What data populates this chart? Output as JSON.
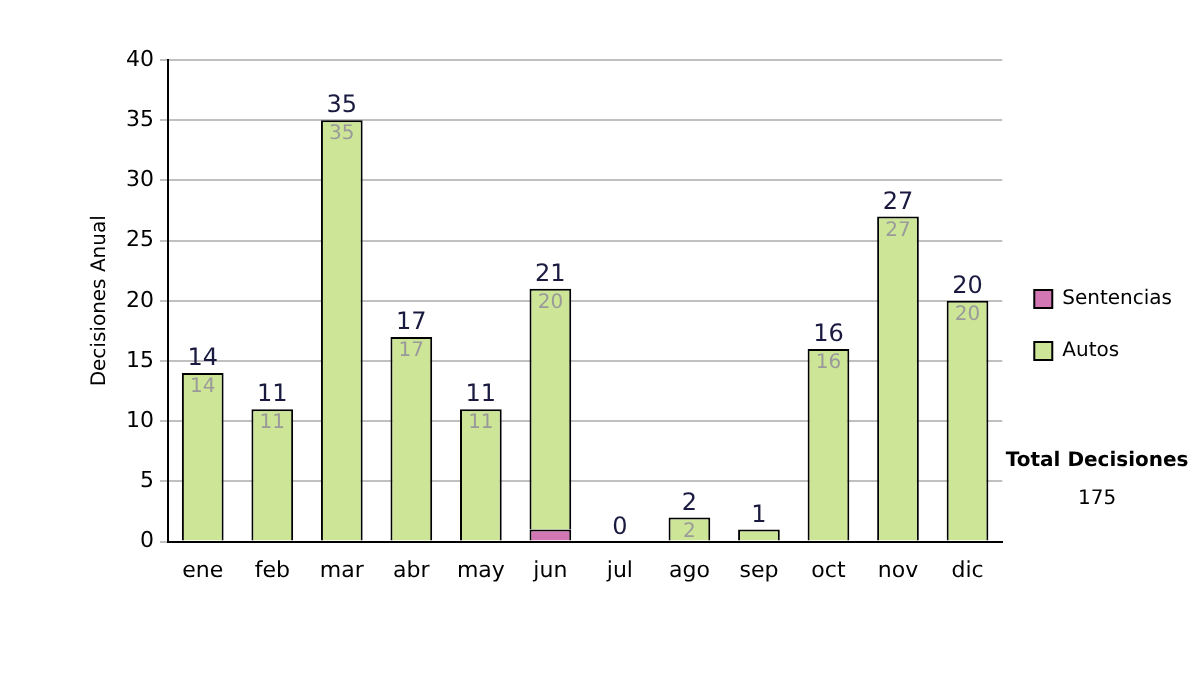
{
  "chart_data": {
    "type": "bar",
    "ylabel": "Decisiones Anual",
    "categories": [
      "ene",
      "feb",
      "mar",
      "abr",
      "may",
      "jun",
      "jul",
      "ago",
      "sep",
      "oct",
      "nov",
      "dic"
    ],
    "stacked": true,
    "series": [
      {
        "name": "Sentencias",
        "color": "#d277b4",
        "values": [
          0,
          0,
          0,
          0,
          0,
          1,
          0,
          0,
          0,
          0,
          0,
          0
        ]
      },
      {
        "name": "Autos",
        "color": "#cce597",
        "values": [
          14,
          11,
          35,
          17,
          11,
          20,
          0,
          2,
          1,
          16,
          27,
          20
        ],
        "value_labels": [
          "14",
          "11",
          "35",
          "17",
          "11",
          "20",
          null,
          "2",
          null,
          "16",
          "27",
          "20"
        ]
      }
    ],
    "totals": [
      "14",
      "11",
      "35",
      "17",
      "11",
      "21",
      "0",
      "2",
      "1",
      "16",
      "27",
      "20"
    ],
    "ylim": [
      0,
      40
    ],
    "yticks": [
      0,
      5,
      10,
      15,
      20,
      25,
      30,
      35,
      40
    ],
    "grid": "y",
    "legend": "right",
    "annotations": [
      "Total Decisiones",
      "175"
    ]
  }
}
